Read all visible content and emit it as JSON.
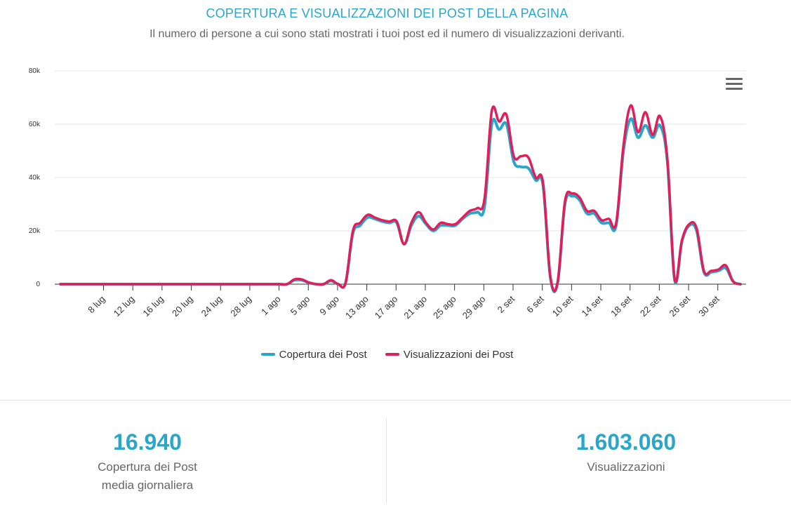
{
  "header": {
    "title": "COPERTURA E VISUALIZZAZIONI DEI POST DELLA PAGINA",
    "subtitle": "Il numero di persone a cui sono stati mostrati i tuoi post ed il numero di visualizzazioni derivanti."
  },
  "chart_data": {
    "type": "line",
    "title": "COPERTURA E VISUALIZZAZIONI DEI POST DELLA PAGINA",
    "subtitle": "Il numero di persone a cui sono stati mostrati i tuoi post ed il numero di visualizzazioni derivanti.",
    "x_tick_labels": [
      "8 lug",
      "12 lug",
      "16 lug",
      "20 lug",
      "24 lug",
      "28 lug",
      "1 ago",
      "5 ago",
      "9 ago",
      "13 ago",
      "17 ago",
      "21 ago",
      "25 ago",
      "29 ago",
      "2 set",
      "6 set",
      "10 set",
      "14 set",
      "18 set",
      "22 set",
      "26 set",
      "30 set"
    ],
    "y_tick_labels": [
      "0",
      "20k",
      "40k",
      "60k",
      "80k"
    ],
    "ylim": [
      0,
      80000
    ],
    "grid": true,
    "legend_position": "bottom-center",
    "series": [
      {
        "name": "Copertura dei Post",
        "color": "#2ba6cb",
        "values": [
          0,
          0,
          0,
          0,
          0,
          0,
          0,
          0,
          0,
          0,
          0,
          0,
          0,
          0,
          0,
          0,
          0,
          0,
          0,
          0,
          0,
          0,
          0,
          0,
          0,
          0,
          0,
          0,
          0,
          0,
          0,
          0,
          1500,
          1500,
          500,
          0,
          0,
          1200,
          0,
          500,
          19000,
          22000,
          25000,
          24500,
          23500,
          23000,
          23000,
          15000,
          22000,
          25500,
          22500,
          20000,
          22000,
          22000,
          22000,
          24500,
          26500,
          27000,
          29000,
          60000,
          58000,
          60000,
          46000,
          44000,
          43500,
          39000,
          37000,
          2500,
          500,
          30000,
          33000,
          31500,
          26500,
          26500,
          23000,
          23000,
          22000,
          50000,
          62000,
          55000,
          59500,
          55000,
          59500,
          46000,
          1500,
          16000,
          22000,
          20000,
          4500,
          4500,
          5000,
          6000,
          1000,
          0
        ]
      },
      {
        "name": "Visualizzazioni dei Post",
        "color": "#e01e5a",
        "values": [
          0,
          0,
          0,
          0,
          0,
          0,
          0,
          0,
          0,
          0,
          0,
          0,
          0,
          0,
          0,
          0,
          0,
          0,
          0,
          0,
          0,
          0,
          0,
          0,
          0,
          0,
          0,
          0,
          0,
          0,
          0,
          0,
          1800,
          1800,
          600,
          0,
          0,
          1500,
          0,
          500,
          20000,
          23000,
          26000,
          25000,
          24000,
          23500,
          23500,
          15000,
          23000,
          27000,
          23000,
          20500,
          23000,
          22500,
          22500,
          25000,
          27500,
          28500,
          32000,
          65000,
          61000,
          63500,
          48000,
          48000,
          47500,
          40000,
          38000,
          3000,
          800,
          31000,
          34000,
          32500,
          27500,
          27500,
          24000,
          24500,
          23000,
          52000,
          67000,
          57000,
          64500,
          56000,
          63000,
          47000,
          2000,
          16500,
          22500,
          21000,
          5000,
          5000,
          5500,
          7000,
          1000,
          0
        ]
      }
    ]
  },
  "legend": {
    "items": [
      {
        "label": "Copertura dei Post",
        "color": "#2ba6cb"
      },
      {
        "label": "Visualizzazioni dei Post",
        "color": "#e01e5a"
      }
    ]
  },
  "stats": {
    "reach": {
      "value": "16.940",
      "label_line1": "Copertura dei Post",
      "label_line2": "media giornaliera"
    },
    "views": {
      "value": "1.603.060",
      "label_line1": "Visualizzazioni"
    }
  },
  "icons": {
    "menu": "hamburger-menu-icon"
  }
}
